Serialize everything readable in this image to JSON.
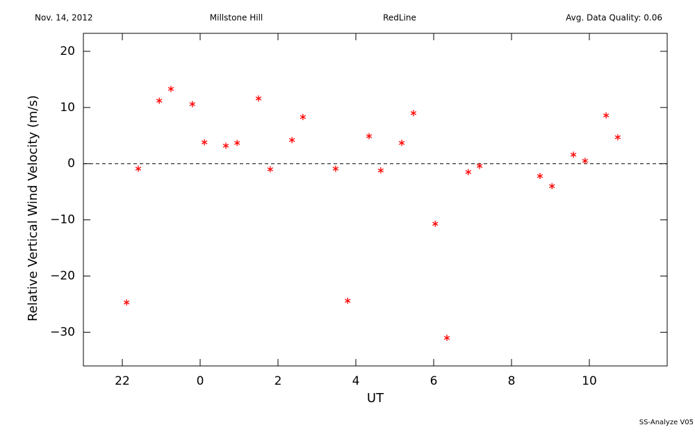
{
  "chart_data": {
    "type": "scatter",
    "header": {
      "date": "Nov. 14, 2012",
      "site": "Millstone Hill",
      "channel": "RedLine",
      "quality": "Avg. Data Quality: 0.06"
    },
    "footer": "SS-Analyze V05",
    "x_label": "UT",
    "y_label": "Relative Vertical Wind Velocity (m/s)",
    "color": "#ff0000",
    "marker": "asterisk",
    "reference_line": 0,
    "xlim": [
      -3,
      12
    ],
    "ylim": [
      -36,
      23.2
    ],
    "xticks": [
      {
        "value": -2,
        "label": "22"
      },
      0,
      2,
      4,
      6,
      8,
      10
    ],
    "yticks": [
      {
        "value": -30,
        "label": "−30"
      },
      {
        "value": -20,
        "label": "−20"
      },
      {
        "value": -10,
        "label": "−10"
      },
      0,
      10,
      20
    ],
    "x": [
      -1.89,
      -1.59,
      -1.05,
      -0.75,
      -0.2,
      0.11,
      0.66,
      0.95,
      1.5,
      1.8,
      2.36,
      2.64,
      3.48,
      3.79,
      4.34,
      4.64,
      5.18,
      5.48,
      6.04,
      6.34,
      6.89,
      7.18,
      8.73,
      9.04,
      9.59,
      9.89,
      10.43,
      10.73
    ],
    "values": [
      -24.7,
      -0.9,
      11.2,
      13.3,
      10.6,
      3.8,
      3.2,
      3.7,
      11.6,
      -1.0,
      4.2,
      8.3,
      -0.9,
      -24.4,
      4.9,
      -1.2,
      3.7,
      9.0,
      -10.7,
      -31.0,
      -1.5,
      -0.4,
      -2.2,
      -4.0,
      1.6,
      0.5,
      8.6,
      4.7
    ]
  }
}
